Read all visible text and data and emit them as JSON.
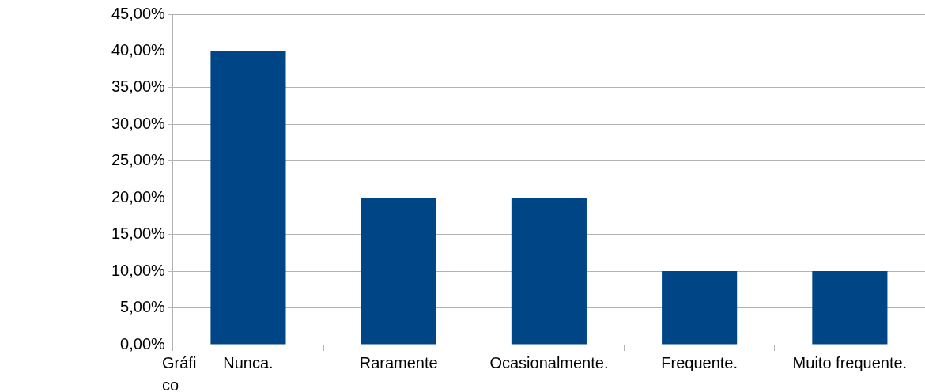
{
  "chart_data": {
    "type": "bar",
    "categories": [
      "Nunca.",
      "Raramente",
      "Ocasionalmente.",
      "Frequente.",
      "Muito frequente."
    ],
    "values": [
      40,
      20,
      20,
      10,
      10
    ],
    "color": "#004586",
    "ylim": [
      0,
      45
    ],
    "yticks": [
      {
        "value": 0,
        "label": "0,00%"
      },
      {
        "value": 5,
        "label": "5,00%"
      },
      {
        "value": 10,
        "label": "10,00%"
      },
      {
        "value": 15,
        "label": "15,00%"
      },
      {
        "value": 20,
        "label": "20,00%"
      },
      {
        "value": 25,
        "label": "25,00%"
      },
      {
        "value": 30,
        "label": "30,00%"
      },
      {
        "value": 35,
        "label": "35,00%"
      },
      {
        "value": 40,
        "label": "40,00%"
      },
      {
        "value": 45,
        "label": "45,00%"
      }
    ],
    "grid": "y",
    "annotations": [
      "Gráfico"
    ]
  }
}
